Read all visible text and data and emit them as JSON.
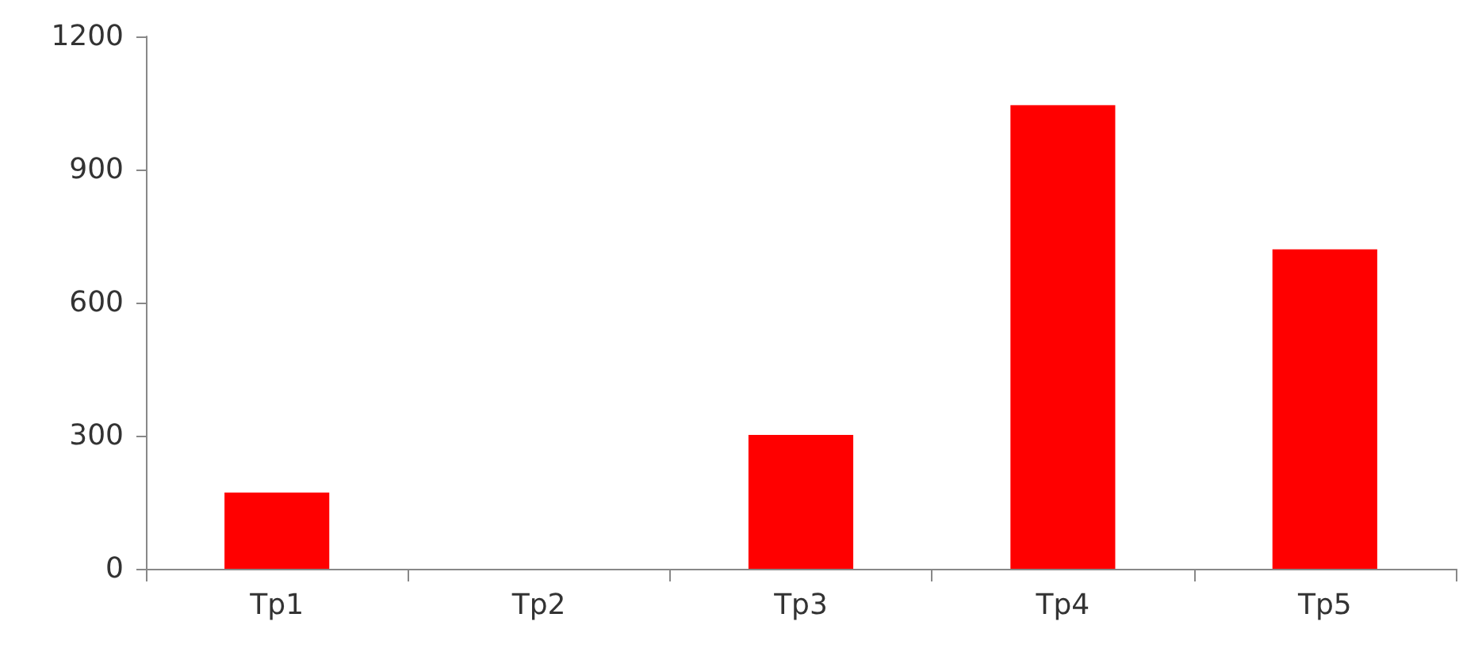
{
  "chart_data": {
    "type": "bar",
    "categories": [
      "Tp1",
      "Tp2",
      "Tp3",
      "Tp4",
      "Tp5"
    ],
    "values": [
      172,
      0,
      302,
      1045,
      720
    ],
    "color": "#ff0000",
    "ylim": [
      0,
      1200
    ],
    "yticks": [
      0,
      300,
      600,
      900,
      1200
    ],
    "grid": false
  }
}
